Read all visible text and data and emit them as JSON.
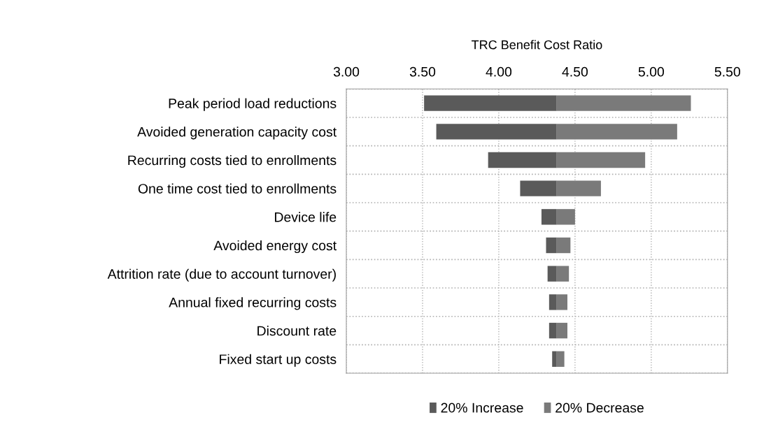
{
  "chart_data": {
    "type": "bar",
    "orientation": "horizontal",
    "xlabel": "TRC Benefit Cost Ratio",
    "categories": [
      "Peak period load reductions",
      "Avoided generation capacity cost",
      "Recurring costs tied to enrollments",
      "One time cost tied to enrollments",
      "Device life",
      "Avoided energy cost",
      "Attrition rate (due to account turnover)",
      "Annual fixed recurring costs",
      "Discount rate",
      "Fixed start up costs"
    ],
    "series": [
      {
        "name": "20% Increase",
        "color": "#5a5a5a",
        "base": [
          3.51,
          3.59,
          3.93,
          4.14,
          4.28,
          4.31,
          4.32,
          4.33,
          4.33,
          4.35
        ],
        "values": [
          0.87,
          0.79,
          0.45,
          0.24,
          0.1,
          0.07,
          0.06,
          0.05,
          0.05,
          0.03
        ]
      },
      {
        "name": "20% Decrease",
        "color": "#7a7a7a",
        "base": [
          4.38,
          4.38,
          4.38,
          4.38,
          4.38,
          4.38,
          4.38,
          4.38,
          4.38,
          4.38
        ],
        "values": [
          0.88,
          0.79,
          0.58,
          0.29,
          0.12,
          0.09,
          0.08,
          0.07,
          0.07,
          0.05
        ]
      }
    ],
    "xlim": [
      3.0,
      5.5
    ],
    "xticks": [
      {
        "value": 3.0,
        "label": "3.00"
      },
      {
        "value": 3.5,
        "label": "3.50"
      },
      {
        "value": 4.0,
        "label": "4.00"
      },
      {
        "value": 4.5,
        "label": "4.50"
      },
      {
        "value": 5.0,
        "label": "5.00"
      },
      {
        "value": 5.5,
        "label": "5.50"
      }
    ],
    "grid": true,
    "legend": "bottom"
  }
}
